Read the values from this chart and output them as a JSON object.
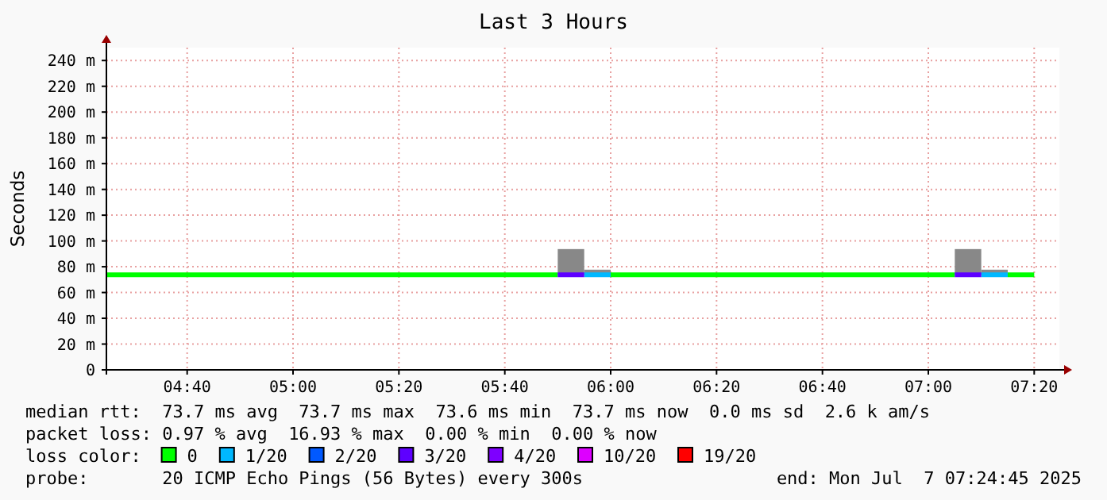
{
  "chart_data": {
    "type": "line",
    "title": "Last 3 Hours",
    "ylabel": "Seconds",
    "legend_title": "loss color:",
    "legend": "bottom",
    "grid": true,
    "marker": "none",
    "line_style": "solid",
    "xlim": [
      4.4125,
      7.4125
    ],
    "xticks": [
      {
        "value": 4.6667,
        "label": "04:40"
      },
      {
        "value": 5,
        "label": "05:00"
      },
      {
        "value": 5.3333,
        "label": "05:20"
      },
      {
        "value": 5.6667,
        "label": "05:40"
      },
      {
        "value": 6,
        "label": "06:00"
      },
      {
        "value": 6.3333,
        "label": "06:20"
      },
      {
        "value": 6.6667,
        "label": "06:40"
      },
      {
        "value": 7,
        "label": "07:00"
      },
      {
        "value": 7.3333,
        "label": "07:20"
      }
    ],
    "ylim": [
      0,
      250
    ],
    "yticks": [
      0,
      {
        "value": 20,
        "label": "20 m"
      },
      {
        "value": 40,
        "label": "40 m"
      },
      {
        "value": 60,
        "label": "60 m"
      },
      {
        "value": 80,
        "label": "80 m"
      },
      {
        "value": 100,
        "label": "100 m"
      },
      {
        "value": 120,
        "label": "120 m"
      },
      {
        "value": 140,
        "label": "140 m"
      },
      {
        "value": 160,
        "label": "160 m"
      },
      {
        "value": 180,
        "label": "180 m"
      },
      {
        "value": 200,
        "label": "200 m"
      },
      {
        "value": 220,
        "label": "220 m"
      },
      {
        "value": 240,
        "label": "240 m"
      }
    ],
    "series": [
      {
        "type": "bar",
        "color": "#888888",
        "x": [
          5.875,
          5.9583,
          7.125,
          7.2083
        ],
        "base": [
          73.7,
          73.7,
          73.7,
          73.7
        ],
        "values": [
          20,
          4,
          20,
          4
        ]
      },
      {
        "name": "0",
        "color": "#00ff00",
        "x": [
          4.4125,
          5.8333,
          5.9,
          6.0,
          7.0833,
          7.15,
          7.25,
          7.3333
        ],
        "values": [
          73.7,
          73.7,
          null,
          73.7,
          73.7,
          null,
          73.7,
          73.7
        ]
      },
      {
        "name": "1/20",
        "color": "#00b8ff",
        "x": [
          5.9167,
          6.0,
          6.5,
          7.1667,
          7.25
        ],
        "values": [
          73.7,
          73.7,
          null,
          73.7,
          73.7
        ]
      },
      {
        "name": "2/20",
        "color": "#0059ff"
      },
      {
        "name": "3/20",
        "color": "#5e00ff",
        "x": [
          5.8333,
          5.9167,
          6.5,
          7.0833,
          7.1667
        ],
        "values": [
          73.7,
          73.7,
          null,
          73.7,
          73.7
        ]
      },
      {
        "name": "4/20",
        "color": "#7e00ff"
      },
      {
        "name": "10/20",
        "color": "#dd00ff"
      },
      {
        "name": "19/20",
        "color": "#ff0000"
      }
    ],
    "annotations": [
      "median rtt:  73.7 ms avg  73.7 ms max  73.6 ms min  73.7 ms now  0.0 ms sd  2.6 k am/s",
      "packet loss: 0.97 % avg  16.93 % max  0.00 % min  0.00 % now",
      "probe:       20 ICMP Echo Pings (56 Bytes) every 300s",
      "end: Mon Jul  7 07:24:45 2025"
    ]
  }
}
